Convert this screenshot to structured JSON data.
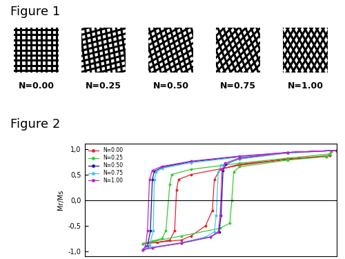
{
  "figure1": {
    "title": "Figure 1",
    "panels": [
      "N=0.00",
      "N=0.25",
      "N=0.50",
      "N=0.75",
      "N=1.00"
    ]
  },
  "chart_data": {
    "type": "line",
    "title": "Figure 2",
    "y_label": "Mr/Ms",
    "xlim": [
      -1.6,
      1.0
    ],
    "xticks": [],
    "ylim": [
      -1.1,
      1.1
    ],
    "yticks": [
      {
        "value": -1.0,
        "label": "-1,0"
      },
      {
        "value": -0.5,
        "label": "-0,5"
      },
      {
        "value": 0.0,
        "label": "0,0"
      },
      {
        "value": 0.5,
        "label": "0,5"
      },
      {
        "value": 1.0,
        "label": "1,0"
      }
    ],
    "tick_labels": "y",
    "legend": "upper left",
    "marker": "o",
    "line_style": "solid",
    "series": [
      {
        "name": "N=0.00",
        "color": "#e8202a",
        "x": [
          1.0,
          0.95,
          0.93,
          0.5,
          0.0,
          -0.5,
          -0.63,
          -0.65,
          -0.67,
          -0.72,
          -0.85,
          -1.0,
          -0.6,
          -0.5,
          -0.35,
          -0.28,
          -0.26,
          -0.2,
          0.0,
          0.5,
          0.9,
          0.93,
          0.95,
          1.0
        ],
        "values": [
          0.97,
          0.96,
          0.87,
          0.8,
          0.68,
          0.5,
          0.4,
          0.2,
          -0.6,
          -0.78,
          -0.83,
          -0.85,
          -0.78,
          -0.7,
          -0.5,
          -0.2,
          0.4,
          0.6,
          0.7,
          0.8,
          0.85,
          0.87,
          0.96,
          0.97
        ]
      },
      {
        "name": "N=0.25",
        "color": "#33cc33",
        "x": [
          1.0,
          0.95,
          0.93,
          0.5,
          0.0,
          -0.5,
          -0.7,
          -0.72,
          -0.76,
          -0.8,
          -0.9,
          -1.0,
          -0.6,
          -0.2,
          -0.1,
          -0.08,
          -0.06,
          0.0,
          0.5,
          0.9,
          0.93,
          0.95,
          1.0
        ],
        "values": [
          0.97,
          0.96,
          0.9,
          0.82,
          0.72,
          0.6,
          0.5,
          0.3,
          -0.6,
          -0.75,
          -0.8,
          -0.85,
          -0.7,
          -0.55,
          -0.45,
          0.0,
          0.55,
          0.65,
          0.78,
          0.85,
          0.9,
          0.96,
          0.97
        ]
      },
      {
        "name": "N=0.50",
        "color": "#1a1aa6",
        "x": [
          1.0,
          0.5,
          0.0,
          -0.5,
          -0.8,
          -0.88,
          -0.9,
          -0.92,
          -0.95,
          -1.0,
          -0.9,
          -0.6,
          -0.3,
          -0.21,
          -0.19,
          -0.17,
          -0.14,
          0.0,
          0.5,
          1.0
        ],
        "values": [
          0.97,
          0.93,
          0.85,
          0.75,
          0.64,
          0.56,
          0.4,
          -0.6,
          -0.9,
          -0.97,
          -0.93,
          -0.84,
          -0.72,
          -0.62,
          -0.3,
          0.58,
          0.7,
          0.81,
          0.93,
          0.97
        ]
      },
      {
        "name": "N=0.75",
        "color": "#40c8e0",
        "x": [
          1.0,
          0.5,
          0.0,
          -0.5,
          -0.8,
          -0.86,
          -0.88,
          -0.89,
          -0.93,
          -1.0,
          -0.9,
          -0.6,
          -0.35,
          -0.26,
          -0.24,
          -0.22,
          -0.19,
          0.0,
          0.5,
          1.0
        ],
        "values": [
          0.97,
          0.92,
          0.84,
          0.73,
          0.62,
          0.55,
          0.4,
          -0.6,
          -0.88,
          -0.96,
          -0.92,
          -0.83,
          -0.72,
          -0.62,
          -0.3,
          0.55,
          0.68,
          0.8,
          0.92,
          0.97
        ]
      },
      {
        "name": "N=1.00",
        "color": "#c020d0",
        "x": [
          1.0,
          0.5,
          0.0,
          -0.5,
          -0.8,
          -0.9,
          -0.93,
          -0.95,
          -0.97,
          -1.0,
          -0.9,
          -0.6,
          -0.3,
          -0.22,
          -0.2,
          -0.18,
          -0.15,
          0.0,
          0.5,
          1.0
        ],
        "values": [
          0.97,
          0.93,
          0.86,
          0.76,
          0.66,
          0.58,
          0.4,
          -0.6,
          -0.9,
          -0.97,
          -0.93,
          -0.84,
          -0.72,
          -0.62,
          -0.3,
          0.6,
          0.72,
          0.82,
          0.93,
          0.97
        ]
      }
    ]
  }
}
